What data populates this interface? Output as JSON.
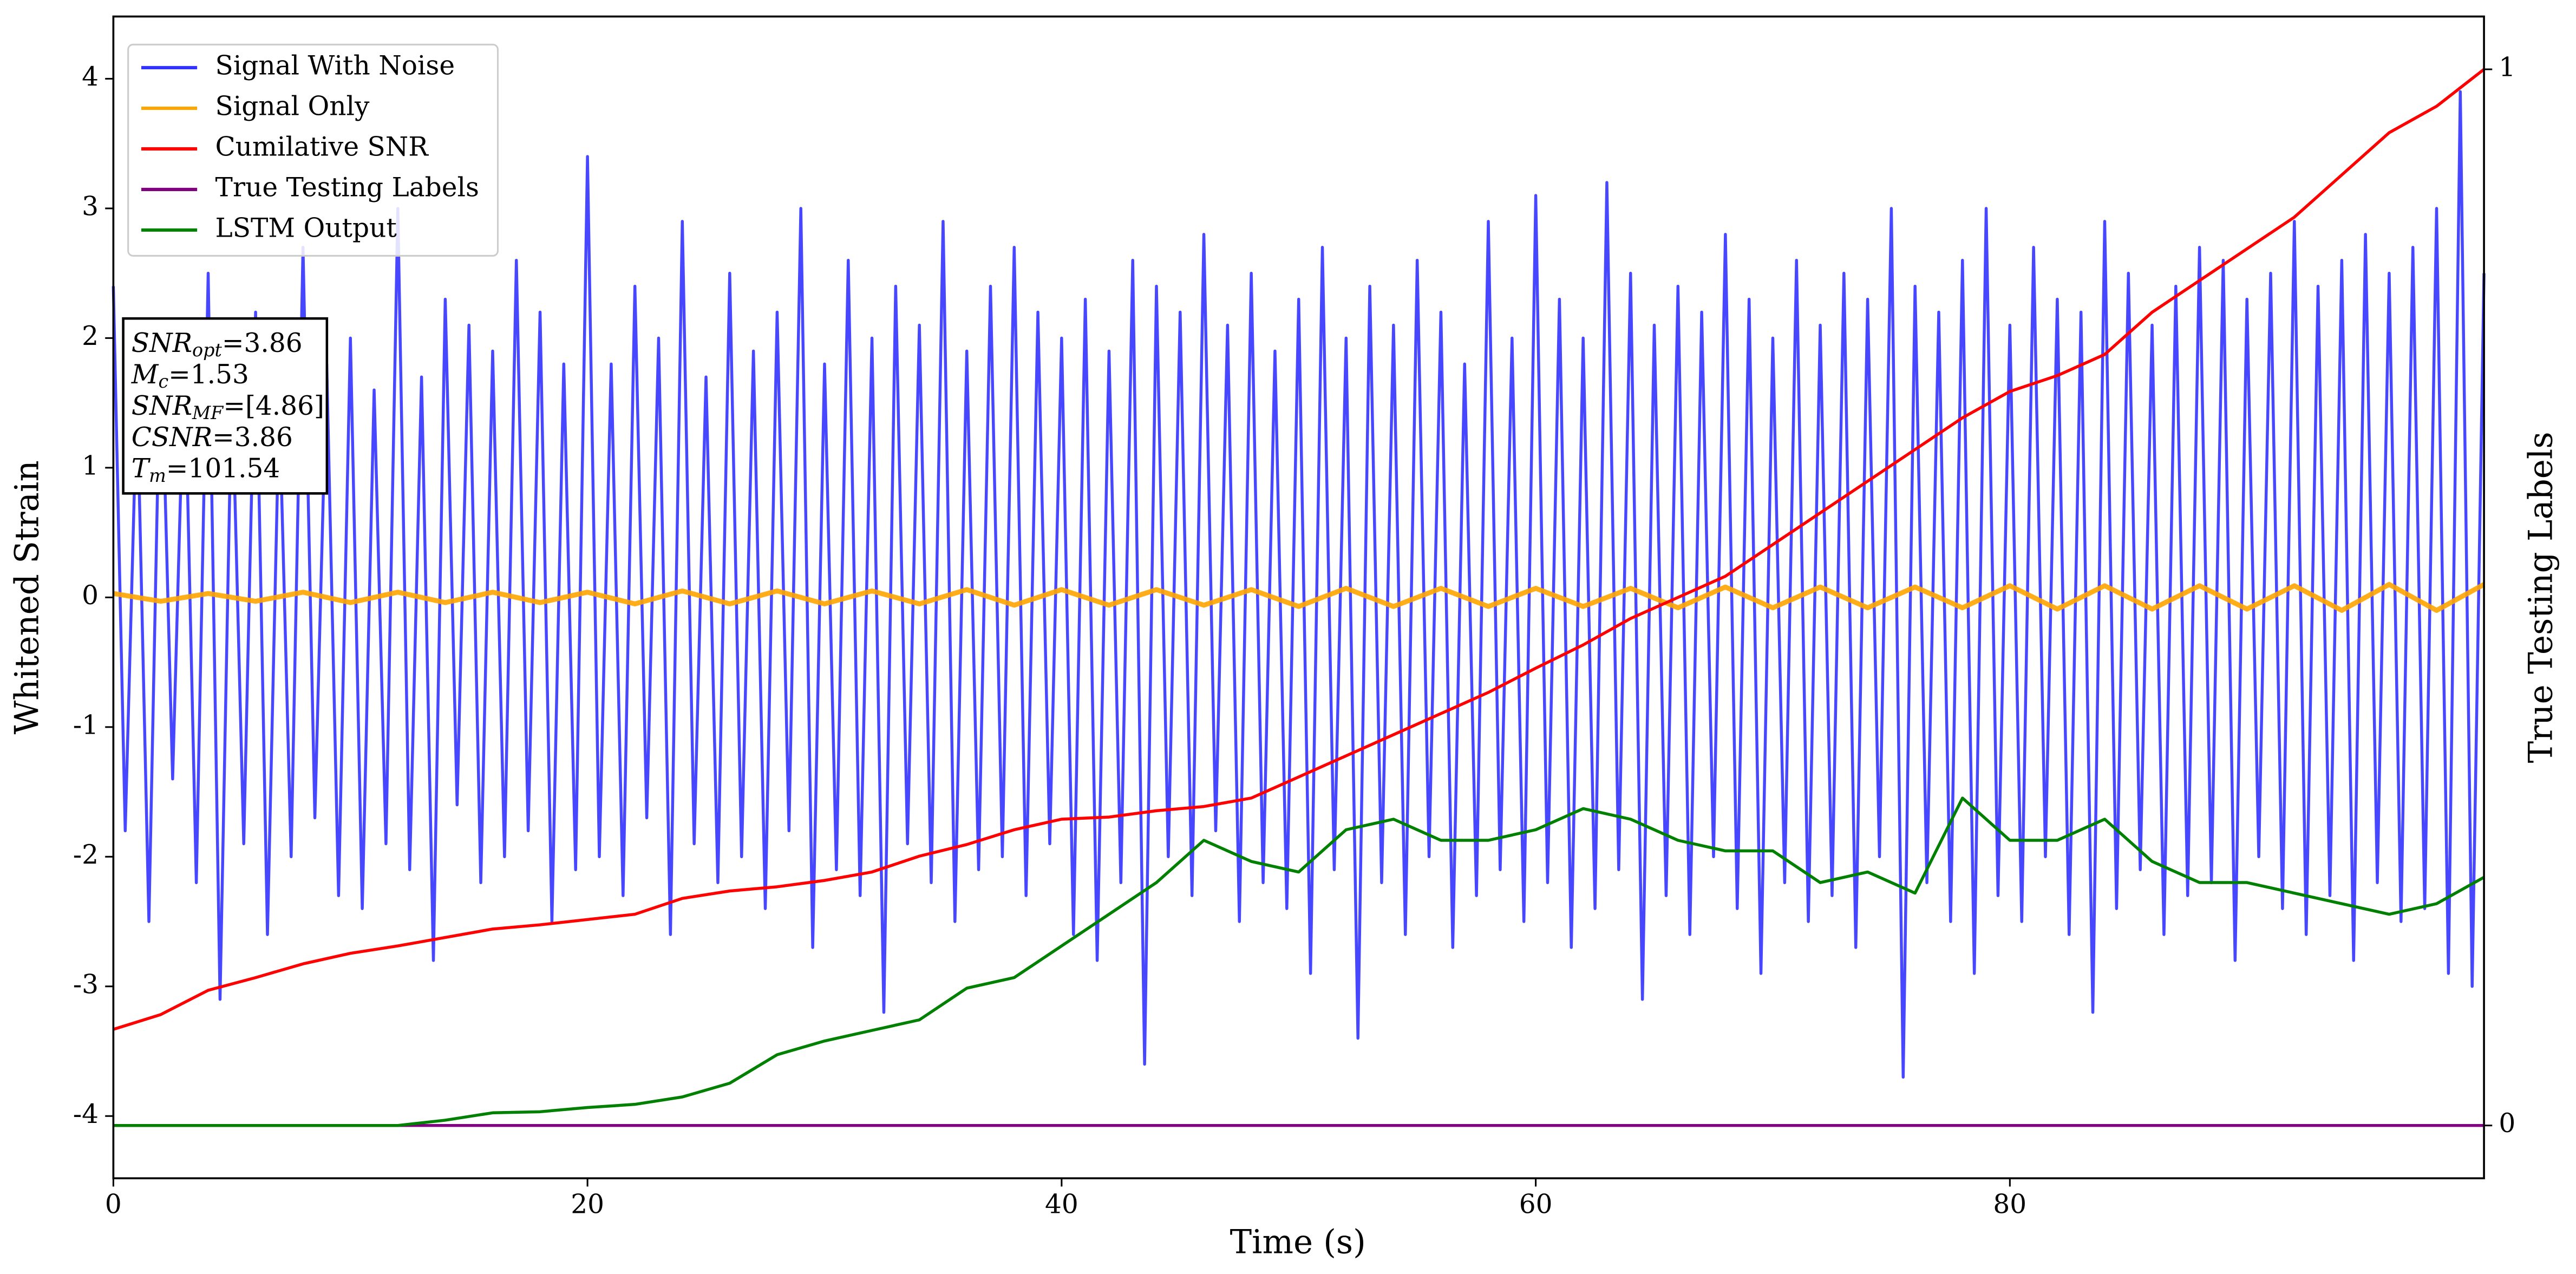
{
  "chart_data": {
    "type": "line",
    "xlabel": "Time (s)",
    "ylabel": "Whitened Strain",
    "y2label": "True Testing Labels",
    "xlim": [
      0,
      100
    ],
    "ylim": [
      -4.48,
      4.48
    ],
    "y2lim": [
      -0.05,
      1.05
    ],
    "xticks": [
      0,
      20,
      40,
      60,
      80
    ],
    "yticks": [
      -4,
      -3,
      -2,
      -1,
      0,
      1,
      2,
      3,
      4
    ],
    "y2ticks": [
      0,
      1
    ],
    "legend": "upper left",
    "x": [
      0,
      2,
      4,
      6,
      8,
      10,
      12,
      14,
      16,
      18,
      20,
      22,
      24,
      26,
      28,
      30,
      32,
      34,
      36,
      38,
      40,
      42,
      44,
      46,
      48,
      50,
      52,
      54,
      56,
      58,
      60,
      62,
      64,
      66,
      68,
      70,
      72,
      74,
      76,
      78,
      80,
      82,
      84,
      86,
      88,
      90,
      92,
      94,
      96,
      98,
      100
    ],
    "series": [
      {
        "name": "Signal With Noise",
        "color": "#3333ff",
        "x": [
          0,
          0.5,
          1,
          1.5,
          2,
          2.5,
          3,
          3.5,
          4,
          4.5,
          5,
          5.5,
          6,
          6.5,
          7,
          7.5,
          8,
          8.5,
          9,
          9.5,
          10,
          10.5,
          11,
          11.5,
          12,
          12.5,
          13,
          13.5,
          14,
          14.5,
          15,
          15.5,
          16,
          16.5,
          17,
          17.5,
          18,
          18.5,
          19,
          19.5,
          20,
          20.5,
          21,
          21.5,
          22,
          22.5,
          23,
          23.5,
          24,
          24.5,
          25,
          25.5,
          26,
          26.5,
          27,
          27.5,
          28,
          28.5,
          29,
          29.5,
          30,
          30.5,
          31,
          31.5,
          32,
          32.5,
          33,
          33.5,
          34,
          34.5,
          35,
          35.5,
          36,
          36.5,
          37,
          37.5,
          38,
          38.5,
          39,
          39.5,
          40,
          40.5,
          41,
          41.5,
          42,
          42.5,
          43,
          43.5,
          44,
          44.5,
          45,
          45.5,
          46,
          46.5,
          47,
          47.5,
          48,
          48.5,
          49,
          49.5,
          50,
          50.5,
          51,
          51.5,
          52,
          52.5,
          53,
          53.5,
          54,
          54.5,
          55,
          55.5,
          56,
          56.5,
          57,
          57.5,
          58,
          58.5,
          59,
          59.5,
          60,
          60.5,
          61,
          61.5,
          62,
          62.5,
          63,
          63.5,
          64,
          64.5,
          65,
          65.5,
          66,
          66.5,
          67,
          67.5,
          68,
          68.5,
          69,
          69.5,
          70,
          70.5,
          71,
          71.5,
          72,
          72.5,
          73,
          73.5,
          74,
          74.5,
          75,
          75.5,
          76,
          76.5,
          77,
          77.5,
          78,
          78.5,
          79,
          79.5,
          80,
          80.5,
          81,
          81.5,
          82,
          82.5,
          83,
          83.5,
          84,
          84.5,
          85,
          85.5,
          86,
          86.5,
          87,
          87.5,
          88,
          88.5,
          89,
          89.5,
          90,
          90.5,
          91,
          91.5,
          92,
          92.5,
          93,
          93.5,
          94,
          94.5,
          95,
          95.5,
          96,
          96.5,
          97,
          97.5,
          98,
          98.5,
          99,
          99.5,
          100
        ],
        "values": [
          2.4,
          -1.8,
          1.6,
          -2.5,
          2.1,
          -1.4,
          1.9,
          -2.2,
          2.5,
          -3.1,
          1.7,
          -1.9,
          2.2,
          -2.6,
          1.5,
          -2.0,
          2.7,
          -1.7,
          1.8,
          -2.3,
          2.0,
          -2.4,
          1.6,
          -1.9,
          3.0,
          -2.1,
          1.7,
          -2.8,
          2.3,
          -1.6,
          2.1,
          -2.2,
          1.9,
          -2.0,
          2.6,
          -1.8,
          2.2,
          -2.5,
          1.8,
          -2.1,
          3.4,
          -2.0,
          1.8,
          -2.3,
          2.4,
          -1.7,
          2.0,
          -2.6,
          2.9,
          -1.9,
          1.7,
          -2.2,
          2.5,
          -2.0,
          1.9,
          -2.4,
          2.2,
          -1.8,
          3.0,
          -2.7,
          1.8,
          -2.1,
          2.6,
          -2.3,
          2.0,
          -3.2,
          2.4,
          -1.9,
          2.1,
          -2.2,
          2.9,
          -2.5,
          1.9,
          -2.1,
          2.4,
          -2.0,
          2.7,
          -2.3,
          2.2,
          -1.9,
          2.0,
          -2.6,
          2.3,
          -2.8,
          1.9,
          -2.2,
          2.6,
          -3.6,
          2.4,
          -2.0,
          2.2,
          -2.3,
          2.8,
          -1.8,
          2.1,
          -2.5,
          2.5,
          -2.2,
          1.9,
          -2.4,
          2.3,
          -2.9,
          2.7,
          -2.1,
          2.0,
          -3.4,
          2.4,
          -2.2,
          2.1,
          -2.6,
          2.6,
          -2.0,
          2.2,
          -2.7,
          1.8,
          -2.3,
          2.9,
          -2.1,
          2.0,
          -2.5,
          3.1,
          -2.2,
          2.3,
          -2.7,
          2.0,
          -2.4,
          3.2,
          -2.1,
          2.5,
          -3.1,
          2.1,
          -2.3,
          2.4,
          -2.6,
          2.2,
          -2.0,
          2.8,
          -2.4,
          2.3,
          -2.9,
          2.0,
          -2.2,
          2.6,
          -2.5,
          2.1,
          -2.3,
          2.5,
          -2.7,
          2.3,
          -2.0,
          3.0,
          -3.7,
          2.4,
          -2.2,
          2.2,
          -2.5,
          2.6,
          -2.9,
          3.0,
          -2.3,
          2.1,
          -2.5,
          2.7,
          -2.0,
          2.3,
          -2.6,
          2.2,
          -3.2,
          2.9,
          -2.4,
          2.5,
          -2.1,
          2.1,
          -2.6,
          2.4,
          -2.3,
          2.7,
          -2.2,
          2.6,
          -2.8,
          2.3,
          -2.0,
          2.5,
          -2.4,
          2.9,
          -2.6,
          2.4,
          -2.3,
          2.6,
          -2.8,
          2.8,
          -2.2,
          2.5,
          -2.5,
          2.7,
          -2.4,
          3.0,
          -2.9,
          3.9,
          -3.0,
          2.5
        ]
      },
      {
        "name": "Signal Only",
        "color": "#ffa500",
        "values": [
          0.03,
          -0.03,
          0.03,
          -0.03,
          0.04,
          -0.04,
          0.04,
          -0.04,
          0.04,
          -0.04,
          0.04,
          -0.05,
          0.05,
          -0.05,
          0.05,
          -0.05,
          0.05,
          -0.05,
          0.06,
          -0.06,
          0.06,
          -0.06,
          0.06,
          -0.06,
          0.06,
          -0.07,
          0.07,
          -0.07,
          0.07,
          -0.07,
          0.07,
          -0.07,
          0.07,
          -0.08,
          0.08,
          -0.08,
          0.08,
          -0.08,
          0.08,
          -0.08,
          0.09,
          -0.09,
          0.09,
          -0.09,
          0.09,
          -0.09,
          0.09,
          -0.1,
          0.1,
          -0.1,
          0.1
        ]
      },
      {
        "name": "Cumilative SNR",
        "color": "#ff0000",
        "axis": "y2",
        "values": [
          0.091,
          0.105,
          0.128,
          0.14,
          0.153,
          0.163,
          0.17,
          0.178,
          0.186,
          0.19,
          0.195,
          0.2,
          0.215,
          0.222,
          0.226,
          0.232,
          0.24,
          0.255,
          0.266,
          0.28,
          0.29,
          0.292,
          0.298,
          0.302,
          0.31,
          0.33,
          0.35,
          0.37,
          0.39,
          0.41,
          0.433,
          0.455,
          0.48,
          0.5,
          0.52,
          0.55,
          0.58,
          0.61,
          0.64,
          0.67,
          0.695,
          0.71,
          0.73,
          0.77,
          0.8,
          0.83,
          0.86,
          0.9,
          0.94,
          0.965,
          1.0
        ]
      },
      {
        "name": "True Testing Labels",
        "color": "#800080",
        "axis": "y2",
        "values": [
          0,
          0,
          0,
          0,
          0,
          0,
          0,
          0,
          0,
          0,
          0,
          0,
          0,
          0,
          0,
          0,
          0,
          0,
          0,
          0,
          0,
          0,
          0,
          0,
          0,
          0,
          0,
          0,
          0,
          0,
          0,
          0,
          0,
          0,
          0,
          0,
          0,
          0,
          0,
          0,
          0,
          0,
          0,
          0,
          0,
          0,
          0,
          0,
          0,
          0,
          0
        ]
      },
      {
        "name": "LSTM Output",
        "color": "#008000",
        "axis": "y2",
        "values": [
          0,
          0,
          0,
          0,
          0,
          0,
          0,
          0.005,
          0.012,
          0.013,
          0.017,
          0.02,
          0.027,
          0.04,
          0.067,
          0.08,
          0.09,
          0.1,
          0.13,
          0.14,
          0.17,
          0.2,
          0.23,
          0.27,
          0.25,
          0.24,
          0.28,
          0.29,
          0.27,
          0.27,
          0.28,
          0.3,
          0.29,
          0.27,
          0.26,
          0.26,
          0.23,
          0.24,
          0.22,
          0.31,
          0.27,
          0.27,
          0.29,
          0.25,
          0.23,
          0.23,
          0.22,
          0.21,
          0.2,
          0.21,
          0.235
        ]
      }
    ],
    "annotations": [
      {
        "symbol": "SNR",
        "subscript": "opt",
        "text": "=3.86"
      },
      {
        "symbol": "M",
        "subscript": "c",
        "text": "=1.53"
      },
      {
        "symbol": "SNR",
        "subscript": "MF",
        "text": "=[4.86]"
      },
      {
        "symbol": "CSNR",
        "text": "=3.86"
      },
      {
        "symbol": "T",
        "subscript": "m",
        "text": "=101.54"
      }
    ]
  }
}
